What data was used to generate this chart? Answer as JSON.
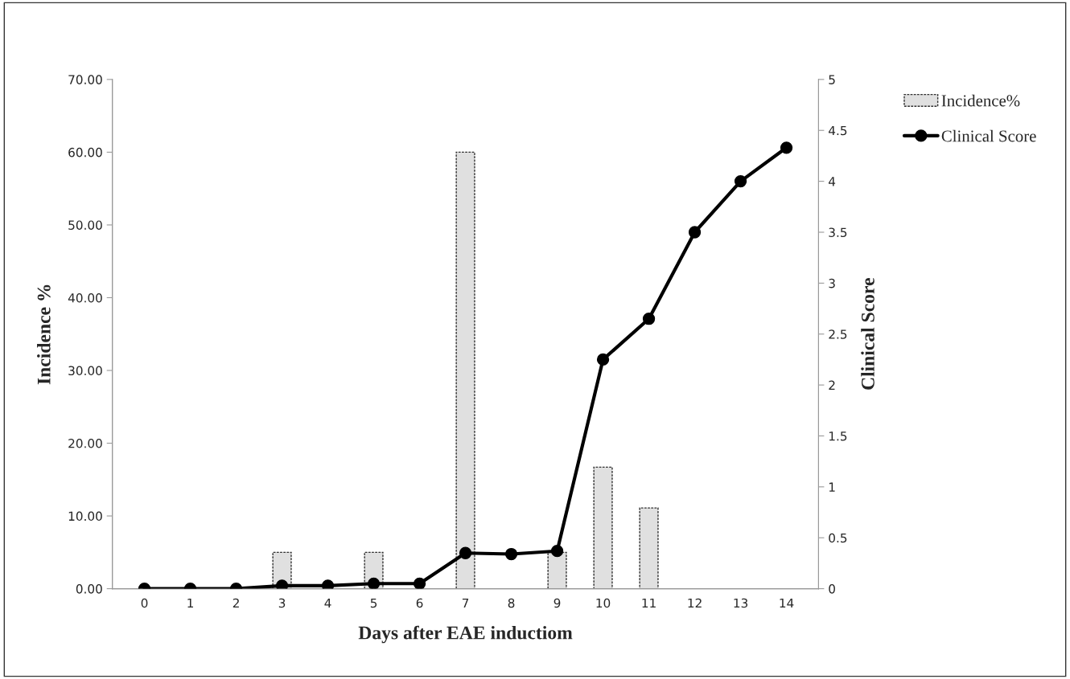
{
  "chart_data": {
    "type": "bar",
    "xlabel": "Days after EAE inductiom",
    "ylabel": "Incidence %",
    "y2label": "Clinical Score",
    "categories": [
      "0",
      "1",
      "2",
      "3",
      "4",
      "5",
      "6",
      "7",
      "8",
      "9",
      "10",
      "11",
      "12",
      "13",
      "14"
    ],
    "series": [
      {
        "name": "Incidence%",
        "color": "#e0e0e0",
        "values": [
          0,
          0,
          0,
          5,
          0,
          5,
          0,
          60,
          0,
          5,
          16.7,
          11.1,
          0,
          0,
          0
        ]
      },
      {
        "name": "Clinical Score",
        "type": "line",
        "axis": "y2",
        "color": "#000000",
        "marker": "circle",
        "values": [
          0,
          0,
          0,
          0.03,
          0.03,
          0.05,
          0.05,
          0.35,
          0.34,
          0.37,
          2.25,
          2.65,
          3.5,
          4.0,
          4.33
        ]
      }
    ],
    "ylim": [
      0,
      70
    ],
    "yticks": [
      {
        "value": 0,
        "label": "0.00"
      },
      {
        "value": 10,
        "label": "10.00"
      },
      {
        "value": 20,
        "label": "20.00"
      },
      {
        "value": 30,
        "label": "30.00"
      },
      {
        "value": 40,
        "label": "40.00"
      },
      {
        "value": 50,
        "label": "50.00"
      },
      {
        "value": 60,
        "label": "60.00"
      },
      {
        "value": 70,
        "label": "70.00"
      }
    ],
    "y2lim": [
      0,
      5
    ],
    "y2ticks": [
      0,
      0.5,
      1,
      1.5,
      2,
      2.5,
      3,
      3.5,
      4,
      4.5,
      5
    ],
    "grid": false,
    "legend": "right"
  }
}
